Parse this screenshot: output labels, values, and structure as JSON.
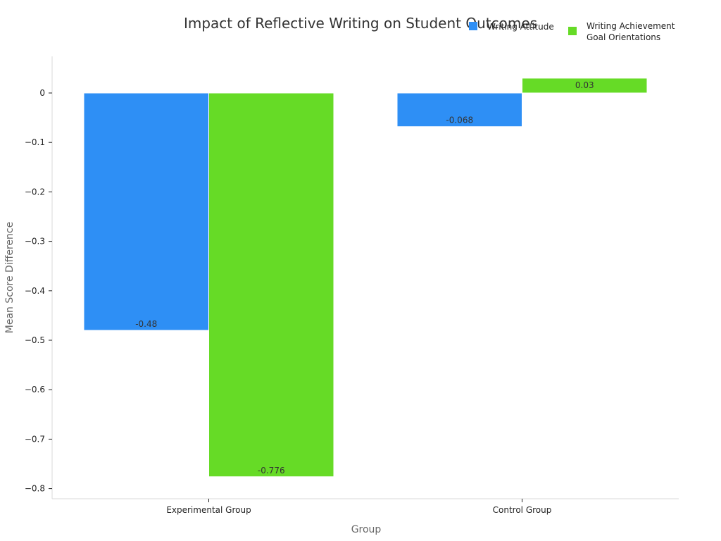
{
  "chart_data": {
    "type": "bar",
    "title": "Impact of Reflective Writing on Student Outcomes",
    "xlabel": "Group",
    "ylabel": "Mean Score Difference",
    "categories": [
      "Experimental Group",
      "Control Group"
    ],
    "series": [
      {
        "name": "Writing Attitude",
        "color": "#2e8ff5",
        "values": [
          -0.48,
          -0.068
        ],
        "labels": [
          "-0.48",
          "-0.068"
        ]
      },
      {
        "name": "Writing Achievement Goal Orientations",
        "color": "#66db26",
        "values": [
          -0.776,
          0.03
        ],
        "labels": [
          "-0.776",
          "0.03"
        ]
      }
    ],
    "ylim": [
      -0.82,
      0.075
    ],
    "yticks": [
      0,
      -0.1,
      -0.2,
      -0.3,
      -0.4,
      -0.5,
      -0.6,
      -0.7,
      -0.8
    ],
    "ytick_labels": [
      "0",
      "−0.1",
      "−0.2",
      "−0.3",
      "−0.4",
      "−0.5",
      "−0.6",
      "−0.7",
      "−0.8"
    ],
    "grid": false,
    "legend_position": "top-right"
  }
}
